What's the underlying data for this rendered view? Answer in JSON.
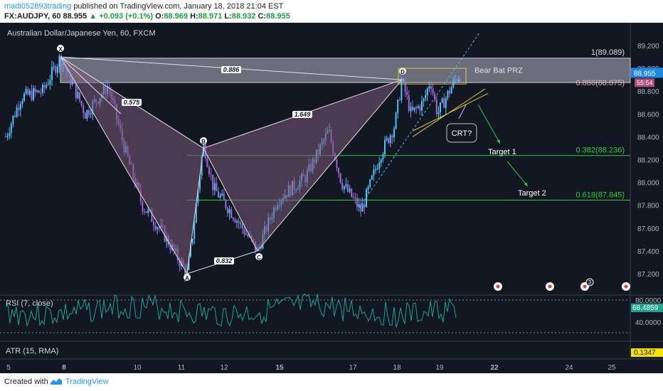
{
  "header": {
    "username": "madi052893trading",
    "published": " published on TradingView.com, January 18, 2018 21:04 EST",
    "symbol": "FX:AUDJPY, 60",
    "last": "88.955",
    "change": "▲ +0.093 (+0.1%)",
    "o_label": "O:",
    "o": "88.969",
    "h_label": "H:",
    "h": "88.971",
    "l_label": "L:",
    "l": "88.932",
    "c_label": "C:",
    "c": "88.955"
  },
  "footer": {
    "created_with": "Created with",
    "brand": "TradingView"
  },
  "colors": {
    "bg": "#131722",
    "up": "#4fc3f7",
    "down": "#9c6ad6",
    "green": "#2ecc40",
    "pattern": "#7a5a7a",
    "rsi": "#1aa58f"
  },
  "chart_data": {
    "type": "candlestick",
    "title": "Australian Dollar/Japanese Yen, 60, FXCM",
    "price_axis": [
      "89.200",
      "89.000",
      "88.800",
      "88.600",
      "88.400",
      "88.200",
      "88.000",
      "87.800",
      "87.600",
      "87.400",
      "87.200"
    ],
    "ylim": [
      87.05,
      89.35
    ],
    "x_ticks": [
      "5",
      "8",
      "10",
      "11",
      "12",
      "15",
      "17",
      "18",
      "19",
      "22",
      "24",
      "25"
    ],
    "current_price": "88.955",
    "countdown": "55:54",
    "pattern_points": [
      {
        "label": "X",
        "x": "Jan 8",
        "price": 89.1
      },
      {
        "label": "A",
        "x": "Jan 11",
        "price": 87.2
      },
      {
        "label": "B",
        "x": "Jan 11",
        "price": 88.3
      },
      {
        "label": "C",
        "x": "Jan 12",
        "price": 87.4
      },
      {
        "label": "D",
        "x": "Jan 18",
        "price": 88.9
      }
    ],
    "ratios": [
      "0.886",
      "0.575",
      "1.649",
      "0.832"
    ],
    "fib_levels": [
      {
        "label": "1(89.089)",
        "price": 89.089
      },
      {
        "label": "0.886(88.875)",
        "price": 88.875
      },
      {
        "label": "0.382(88.236)",
        "price": 88.236
      },
      {
        "label": "0.618(87.845)",
        "price": 87.845
      }
    ],
    "annotations": [
      "Bear Bat PRZ",
      "CRT?",
      "Target 1",
      "Target 2"
    ],
    "event_badge": "3",
    "rsi": {
      "label": "RSI (7, close)",
      "value": "68.4859",
      "axis": [
        "80.0000",
        "40.0000"
      ]
    },
    "atr": {
      "label": "ATR (15, RMA)",
      "value": "0.1347"
    }
  }
}
